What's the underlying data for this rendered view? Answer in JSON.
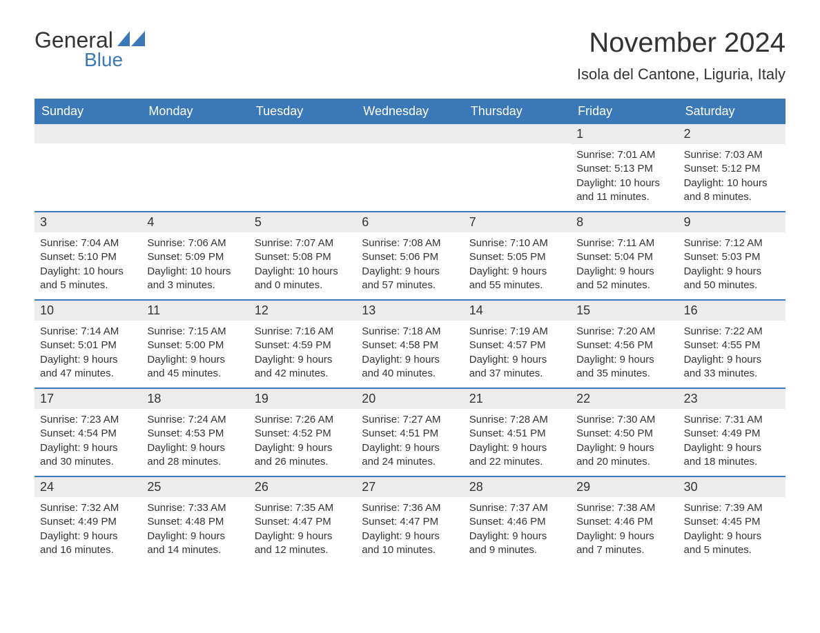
{
  "logo": {
    "text1": "General",
    "text2": "Blue",
    "icon_color": "#3b78b8",
    "text1_color": "#333333"
  },
  "title": "November 2024",
  "location": "Isola del Cantone, Liguria, Italy",
  "colors": {
    "header_bg": "#3b78b8",
    "header_text": "#ffffff",
    "daynum_bg": "#ececec",
    "text": "#333333",
    "week_border": "#3b78b8",
    "page_bg": "#ffffff"
  },
  "fonts": {
    "title_size": 40,
    "location_size": 22,
    "weekday_size": 18,
    "daynum_size": 18,
    "info_size": 15
  },
  "weekdays": [
    "Sunday",
    "Monday",
    "Tuesday",
    "Wednesday",
    "Thursday",
    "Friday",
    "Saturday"
  ],
  "weeks": [
    [
      {
        "empty": true
      },
      {
        "empty": true
      },
      {
        "empty": true
      },
      {
        "empty": true
      },
      {
        "empty": true
      },
      {
        "day": "1",
        "sunrise": "Sunrise: 7:01 AM",
        "sunset": "Sunset: 5:13 PM",
        "daylight": "Daylight: 10 hours and 11 minutes."
      },
      {
        "day": "2",
        "sunrise": "Sunrise: 7:03 AM",
        "sunset": "Sunset: 5:12 PM",
        "daylight": "Daylight: 10 hours and 8 minutes."
      }
    ],
    [
      {
        "day": "3",
        "sunrise": "Sunrise: 7:04 AM",
        "sunset": "Sunset: 5:10 PM",
        "daylight": "Daylight: 10 hours and 5 minutes."
      },
      {
        "day": "4",
        "sunrise": "Sunrise: 7:06 AM",
        "sunset": "Sunset: 5:09 PM",
        "daylight": "Daylight: 10 hours and 3 minutes."
      },
      {
        "day": "5",
        "sunrise": "Sunrise: 7:07 AM",
        "sunset": "Sunset: 5:08 PM",
        "daylight": "Daylight: 10 hours and 0 minutes."
      },
      {
        "day": "6",
        "sunrise": "Sunrise: 7:08 AM",
        "sunset": "Sunset: 5:06 PM",
        "daylight": "Daylight: 9 hours and 57 minutes."
      },
      {
        "day": "7",
        "sunrise": "Sunrise: 7:10 AM",
        "sunset": "Sunset: 5:05 PM",
        "daylight": "Daylight: 9 hours and 55 minutes."
      },
      {
        "day": "8",
        "sunrise": "Sunrise: 7:11 AM",
        "sunset": "Sunset: 5:04 PM",
        "daylight": "Daylight: 9 hours and 52 minutes."
      },
      {
        "day": "9",
        "sunrise": "Sunrise: 7:12 AM",
        "sunset": "Sunset: 5:03 PM",
        "daylight": "Daylight: 9 hours and 50 minutes."
      }
    ],
    [
      {
        "day": "10",
        "sunrise": "Sunrise: 7:14 AM",
        "sunset": "Sunset: 5:01 PM",
        "daylight": "Daylight: 9 hours and 47 minutes."
      },
      {
        "day": "11",
        "sunrise": "Sunrise: 7:15 AM",
        "sunset": "Sunset: 5:00 PM",
        "daylight": "Daylight: 9 hours and 45 minutes."
      },
      {
        "day": "12",
        "sunrise": "Sunrise: 7:16 AM",
        "sunset": "Sunset: 4:59 PM",
        "daylight": "Daylight: 9 hours and 42 minutes."
      },
      {
        "day": "13",
        "sunrise": "Sunrise: 7:18 AM",
        "sunset": "Sunset: 4:58 PM",
        "daylight": "Daylight: 9 hours and 40 minutes."
      },
      {
        "day": "14",
        "sunrise": "Sunrise: 7:19 AM",
        "sunset": "Sunset: 4:57 PM",
        "daylight": "Daylight: 9 hours and 37 minutes."
      },
      {
        "day": "15",
        "sunrise": "Sunrise: 7:20 AM",
        "sunset": "Sunset: 4:56 PM",
        "daylight": "Daylight: 9 hours and 35 minutes."
      },
      {
        "day": "16",
        "sunrise": "Sunrise: 7:22 AM",
        "sunset": "Sunset: 4:55 PM",
        "daylight": "Daylight: 9 hours and 33 minutes."
      }
    ],
    [
      {
        "day": "17",
        "sunrise": "Sunrise: 7:23 AM",
        "sunset": "Sunset: 4:54 PM",
        "daylight": "Daylight: 9 hours and 30 minutes."
      },
      {
        "day": "18",
        "sunrise": "Sunrise: 7:24 AM",
        "sunset": "Sunset: 4:53 PM",
        "daylight": "Daylight: 9 hours and 28 minutes."
      },
      {
        "day": "19",
        "sunrise": "Sunrise: 7:26 AM",
        "sunset": "Sunset: 4:52 PM",
        "daylight": "Daylight: 9 hours and 26 minutes."
      },
      {
        "day": "20",
        "sunrise": "Sunrise: 7:27 AM",
        "sunset": "Sunset: 4:51 PM",
        "daylight": "Daylight: 9 hours and 24 minutes."
      },
      {
        "day": "21",
        "sunrise": "Sunrise: 7:28 AM",
        "sunset": "Sunset: 4:51 PM",
        "daylight": "Daylight: 9 hours and 22 minutes."
      },
      {
        "day": "22",
        "sunrise": "Sunrise: 7:30 AM",
        "sunset": "Sunset: 4:50 PM",
        "daylight": "Daylight: 9 hours and 20 minutes."
      },
      {
        "day": "23",
        "sunrise": "Sunrise: 7:31 AM",
        "sunset": "Sunset: 4:49 PM",
        "daylight": "Daylight: 9 hours and 18 minutes."
      }
    ],
    [
      {
        "day": "24",
        "sunrise": "Sunrise: 7:32 AM",
        "sunset": "Sunset: 4:49 PM",
        "daylight": "Daylight: 9 hours and 16 minutes."
      },
      {
        "day": "25",
        "sunrise": "Sunrise: 7:33 AM",
        "sunset": "Sunset: 4:48 PM",
        "daylight": "Daylight: 9 hours and 14 minutes."
      },
      {
        "day": "26",
        "sunrise": "Sunrise: 7:35 AM",
        "sunset": "Sunset: 4:47 PM",
        "daylight": "Daylight: 9 hours and 12 minutes."
      },
      {
        "day": "27",
        "sunrise": "Sunrise: 7:36 AM",
        "sunset": "Sunset: 4:47 PM",
        "daylight": "Daylight: 9 hours and 10 minutes."
      },
      {
        "day": "28",
        "sunrise": "Sunrise: 7:37 AM",
        "sunset": "Sunset: 4:46 PM",
        "daylight": "Daylight: 9 hours and 9 minutes."
      },
      {
        "day": "29",
        "sunrise": "Sunrise: 7:38 AM",
        "sunset": "Sunset: 4:46 PM",
        "daylight": "Daylight: 9 hours and 7 minutes."
      },
      {
        "day": "30",
        "sunrise": "Sunrise: 7:39 AM",
        "sunset": "Sunset: 4:45 PM",
        "daylight": "Daylight: 9 hours and 5 minutes."
      }
    ]
  ]
}
